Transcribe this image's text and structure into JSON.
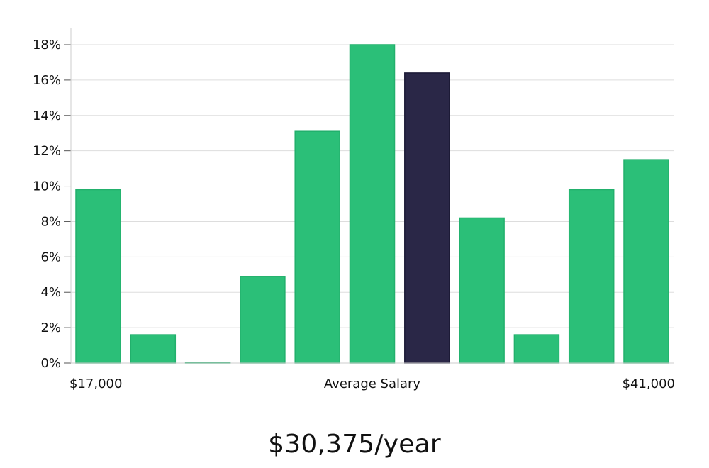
{
  "colors": {
    "bar": "#2bbf78",
    "bar_stroke": "#22b06c",
    "highlight": "#2a2747",
    "highlight_stroke": "#1c1a36",
    "grid": "#dddddd",
    "axis": "#cccccc"
  },
  "chart_data": {
    "type": "bar",
    "categories": [
      "1",
      "2",
      "3",
      "4",
      "5",
      "6",
      "7",
      "8",
      "9",
      "10",
      "11"
    ],
    "values": [
      9.8,
      1.6,
      0.05,
      4.9,
      13.1,
      18.0,
      16.4,
      8.2,
      1.6,
      9.8,
      11.5
    ],
    "highlight_index": 6,
    "ylim": [
      0,
      19
    ],
    "yticks": [
      0,
      2,
      4,
      6,
      8,
      10,
      12,
      14,
      16,
      18
    ],
    "ytick_labels": [
      "0%",
      "2%",
      "4%",
      "6%",
      "8%",
      "10%",
      "12%",
      "14%",
      "16%",
      "18%"
    ],
    "x_labels": {
      "left": "$17,000",
      "center": "Average Salary",
      "right": "$41,000"
    },
    "grid": true
  },
  "headline": "$30,375/year"
}
